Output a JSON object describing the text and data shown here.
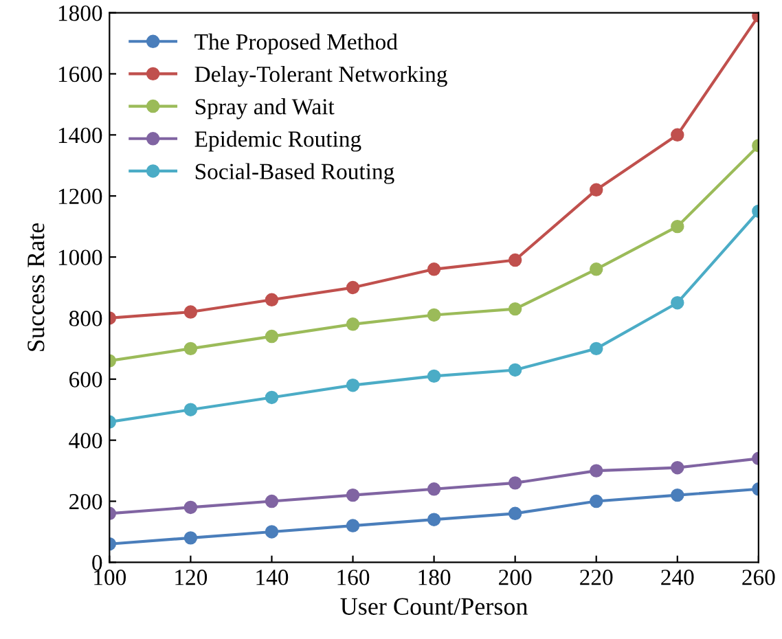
{
  "chart_data": {
    "type": "line",
    "xlabel": "User Count/Person",
    "ylabel": "Success Rate",
    "x": [
      100,
      120,
      140,
      160,
      180,
      200,
      220,
      240,
      260
    ],
    "series": [
      {
        "name": "The Proposed Method",
        "color": "#4a7ebb",
        "values": [
          60,
          80,
          100,
          120,
          140,
          160,
          200,
          220,
          240
        ]
      },
      {
        "name": "Delay-Tolerant Networking",
        "color": "#c0504d",
        "values": [
          800,
          820,
          860,
          900,
          960,
          990,
          1220,
          1400,
          1790
        ]
      },
      {
        "name": "Spray and Wait",
        "color": "#9bbb59",
        "values": [
          660,
          700,
          740,
          780,
          810,
          830,
          960,
          1100,
          1365
        ]
      },
      {
        "name": "Epidemic Routing",
        "color": "#8064a2",
        "values": [
          160,
          180,
          200,
          220,
          240,
          260,
          300,
          310,
          340
        ]
      },
      {
        "name": "Social-Based Routing",
        "color": "#4bacc6",
        "values": [
          460,
          500,
          540,
          580,
          610,
          630,
          700,
          850,
          1150
        ]
      }
    ],
    "xlim": [
      100,
      260
    ],
    "xticks": [
      100,
      120,
      140,
      160,
      180,
      200,
      220,
      240,
      260
    ],
    "ylim": [
      0,
      1800
    ],
    "yticks": [
      0,
      200,
      400,
      600,
      800,
      1000,
      1200,
      1400,
      1600,
      1800
    ],
    "grid": false,
    "legend": "top left",
    "marker": "circle",
    "line_style": "solid"
  }
}
